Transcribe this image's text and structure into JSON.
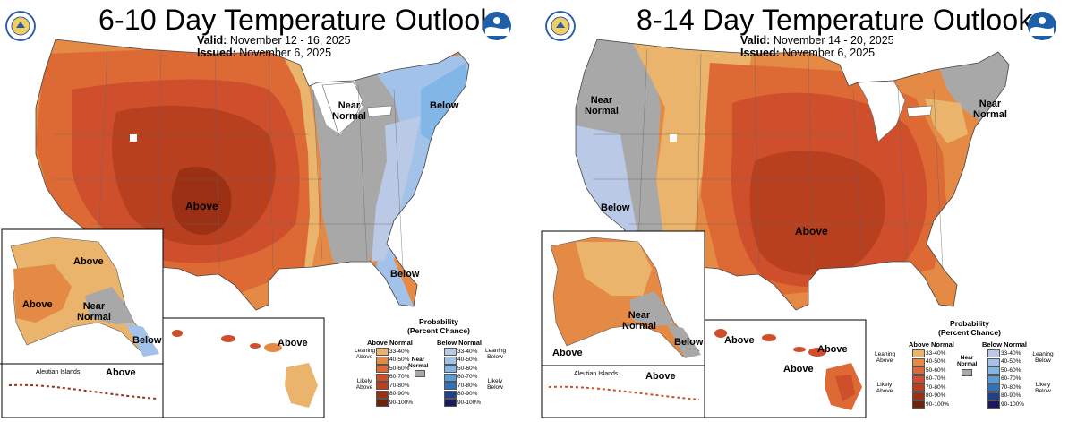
{
  "maps": [
    {
      "title": "6-10 Day Temperature Outlook",
      "valid_label": "Valid:",
      "valid_value": "November 12 - 16, 2025",
      "issued_label": "Issued:",
      "issued_value": "November 6, 2025",
      "labels": {
        "above_main": "Above",
        "near_normal_ne_1": "Near",
        "near_normal_ne_2": "Normal",
        "below_ne": "Below",
        "below_fl": "Below",
        "ak_above_n": "Above",
        "ak_above_w": "Above",
        "ak_near_1": "Near",
        "ak_near_2": "Normal",
        "ak_below": "Below",
        "aleutian": "Aleutian Islands",
        "aleutian_above": "Above",
        "hi_above": "Above"
      }
    },
    {
      "title": "8-14 Day Temperature Outlook",
      "valid_label": "Valid:",
      "valid_value": "November 14 - 20, 2025",
      "issued_label": "Issued:",
      "issued_value": "November 6, 2025",
      "labels": {
        "near_normal_w_1": "Near",
        "near_normal_w_2": "Normal",
        "near_normal_ne_1": "Near",
        "near_normal_ne_2": "Normal",
        "below_ca": "Below",
        "above_main": "Above",
        "ak_near_1": "Near",
        "ak_near_2": "Normal",
        "ak_above": "Above",
        "ak_below": "Below",
        "aleutian": "Aleutian Islands",
        "aleutian_above": "Above",
        "hi_above_1": "Above",
        "hi_above_2": "Above",
        "hi_above_3": "Above"
      }
    }
  ],
  "legend": {
    "title_1": "Probability",
    "title_2": "(Percent Chance)",
    "above_head": "Above Normal",
    "below_head": "Below Normal",
    "near_1": "Near",
    "near_2": "Normal",
    "leaning_above_1": "Leaning",
    "leaning_above_2": "Above",
    "likely_above_1": "Likely",
    "likely_above_2": "Above",
    "leaning_below_1": "Leaning",
    "leaning_below_2": "Below",
    "likely_below_1": "Likely",
    "likely_below_2": "Below",
    "ranges": [
      "33-40%",
      "40-50%",
      "50-60%",
      "60-70%",
      "70-80%",
      "80-90%",
      "90-100%"
    ],
    "above_colors": [
      "#eab46c",
      "#e58a44",
      "#dd6a35",
      "#cf4f2c",
      "#b9401f",
      "#9b3014",
      "#6f230d"
    ],
    "below_colors": [
      "#b9c9e6",
      "#a2c2ea",
      "#82b6e7",
      "#5a9cd8",
      "#2f72b8",
      "#213f8a",
      "#1b1a5e"
    ],
    "near_color": "#a8a8a8"
  },
  "colors": {
    "above_33_40": "#eab46c",
    "above_40_50": "#e58a44",
    "above_50_60": "#dd6a35",
    "above_60_70": "#cf4f2c",
    "above_70_80": "#b9401f",
    "above_80_90": "#9b3014",
    "near": "#a8a8a8",
    "below_33_40": "#b9c9e6",
    "below_40_50": "#a2c2ea",
    "below_50_60": "#82b6e7"
  },
  "logos": {
    "left_1": "commerce-seal-icon",
    "left_2": "noaa-logo-icon",
    "right_1": "commerce-seal-icon",
    "right_2": "noaa-logo-icon"
  }
}
